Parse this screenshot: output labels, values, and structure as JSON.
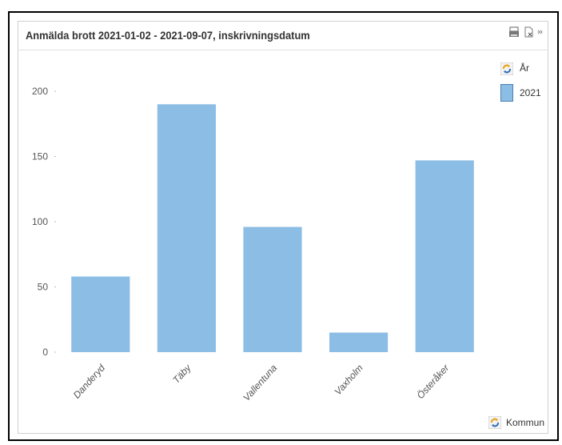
{
  "title": "Anmälda brott 2021-01-02 - 2021-09-07, inskrivningsdatum",
  "legend": {
    "title": "År",
    "items": [
      "2021"
    ]
  },
  "x_axis_title": "Kommun",
  "icons": {
    "cycle": "cycle-dimension-icon",
    "print": "print-icon",
    "export": "export-excel-icon",
    "more": "more-icon"
  },
  "colors": {
    "bar": "#8cbde5",
    "icon_accent": "#e8a317"
  },
  "chart_data": {
    "type": "bar",
    "categories": [
      "Danderyd",
      "Täby",
      "Vallentuna",
      "Vaxholm",
      "Österåker"
    ],
    "series": [
      {
        "name": "2021",
        "values": [
          58,
          190,
          96,
          15,
          147
        ]
      }
    ],
    "title": "Anmälda brott 2021-01-02 - 2021-09-07, inskrivningsdatum",
    "xlabel": "Kommun",
    "ylabel": "",
    "ylim": [
      0,
      200
    ],
    "yticks": [
      0,
      50,
      100,
      150,
      200
    ],
    "grid": false,
    "legend": "top-right"
  }
}
